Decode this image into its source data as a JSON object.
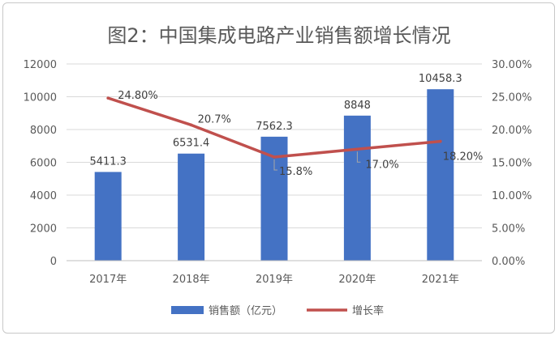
{
  "chart_data": {
    "type": "bar",
    "title": "图2：中国集成电路产业销售额增长情况",
    "categories": [
      "2017年",
      "2018年",
      "2019年",
      "2020年",
      "2021年"
    ],
    "series": [
      {
        "name": "销售额（亿元）",
        "type": "bar",
        "axis": "left",
        "values": [
          5411.3,
          6531.4,
          7562.3,
          8848,
          10458.3
        ],
        "labels": [
          "5411.3",
          "6531.4",
          "7562.3",
          "8848",
          "10458.3"
        ],
        "color": "#4472C4"
      },
      {
        "name": "增长率",
        "type": "line",
        "axis": "right",
        "values": [
          24.8,
          20.7,
          15.8,
          17.0,
          18.2
        ],
        "labels": [
          "24.80%",
          "20.7%",
          "15.8%",
          "17.0%",
          "18.20%"
        ],
        "color": "#C0504D"
      }
    ],
    "y_left": {
      "min": 0,
      "max": 12000,
      "step": 2000,
      "ticks": [
        "0",
        "2000",
        "4000",
        "6000",
        "8000",
        "10000",
        "12000"
      ]
    },
    "y_right": {
      "min": 0,
      "max": 30,
      "step": 5,
      "ticks": [
        "0.00%",
        "5.00%",
        "10.00%",
        "15.00%",
        "20.00%",
        "25.00%",
        "30.00%"
      ]
    },
    "grid": true,
    "legend": "bottom",
    "colors": {
      "grid": "#d9d9d9",
      "text": "#595959",
      "title": "#595959"
    }
  }
}
